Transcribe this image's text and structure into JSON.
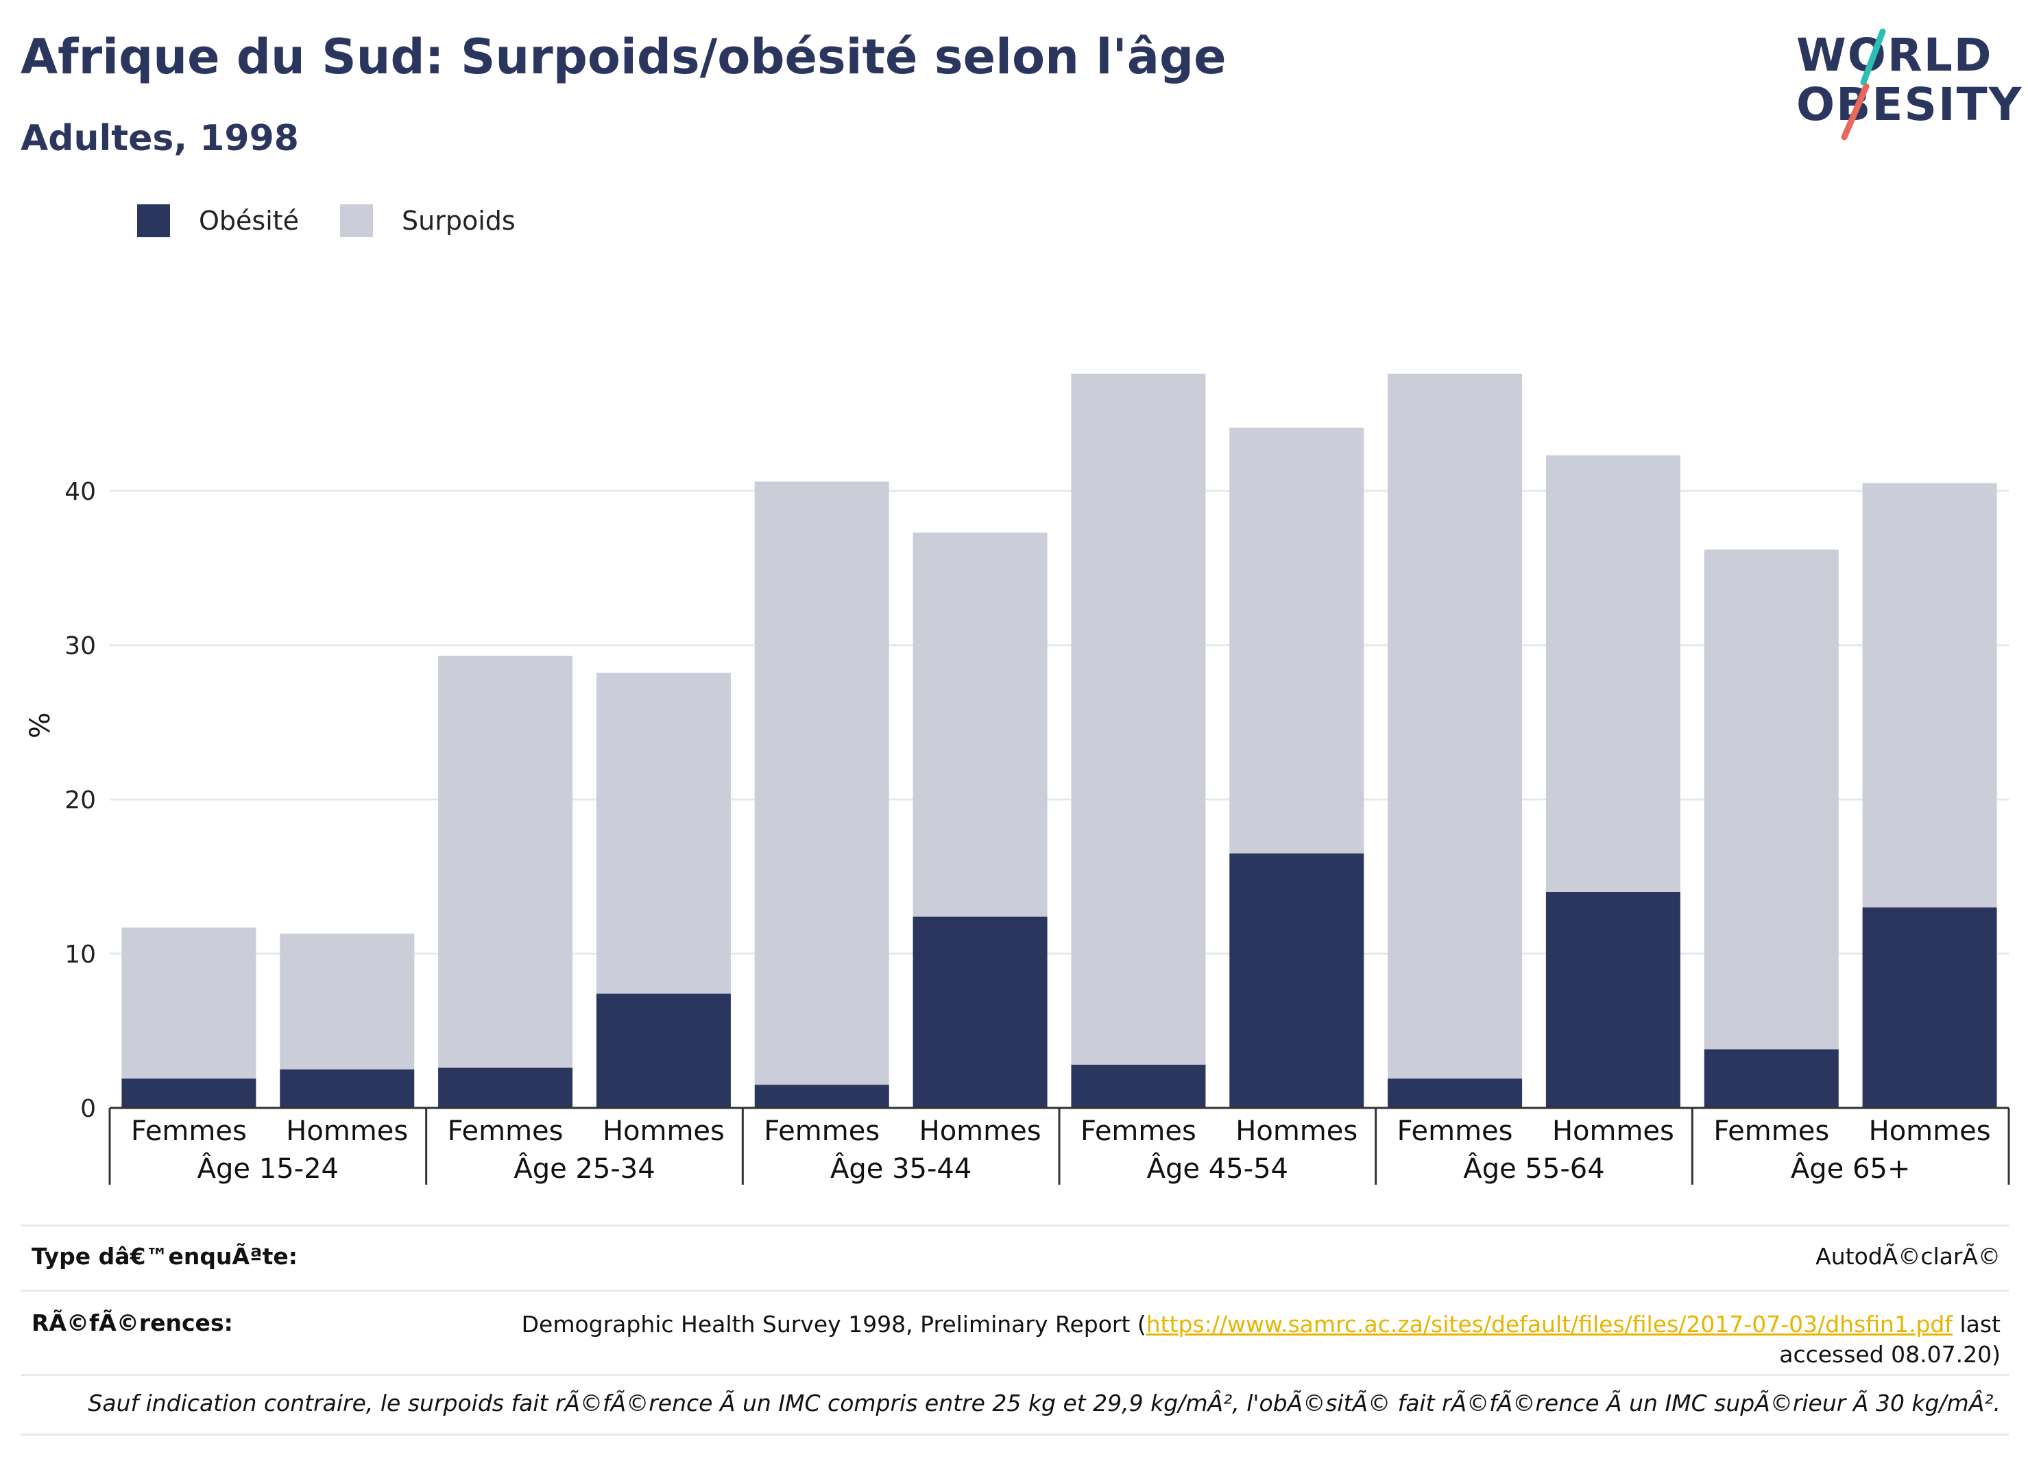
{
  "title": "Afrique du Sud: Surpoids/obésité selon l'âge",
  "subtitle": "Adultes, 1998",
  "logo": {
    "line1": "WORLD",
    "line2": "OBESITY"
  },
  "colors": {
    "obesity": "#2b365f",
    "overweight": "#cbcdd9",
    "grid": "#e6e8ee",
    "accent_teal": "#2bbfb3",
    "accent_coral": "#e8695a",
    "link": "#e8b400"
  },
  "legend": [
    {
      "label": "Obésité",
      "color": "#2b365f"
    },
    {
      "label": "Surpoids",
      "color": "#cbcdd9"
    }
  ],
  "chart_data": {
    "type": "bar",
    "stacked": true,
    "ylabel": "%",
    "ylim": [
      0,
      50
    ],
    "yticks": [
      0,
      10,
      20,
      30,
      40
    ],
    "grid": true,
    "legend_position": "top-left",
    "groups": [
      "Âge 15-24",
      "Âge 25-34",
      "Âge 35-44",
      "Âge 45-54",
      "Âge 55-64",
      "Âge 65+"
    ],
    "categories": [
      "Femmes",
      "Hommes",
      "Femmes",
      "Hommes",
      "Femmes",
      "Hommes",
      "Femmes",
      "Hommes",
      "Femmes",
      "Hommes",
      "Femmes",
      "Hommes"
    ],
    "series": [
      {
        "name": "Obésité",
        "values": [
          1.9,
          2.5,
          2.6,
          7.4,
          1.5,
          12.4,
          2.8,
          16.5,
          1.9,
          14.0,
          3.8,
          13.0
        ]
      },
      {
        "name": "Surpoids",
        "values": [
          9.8,
          8.8,
          26.7,
          20.8,
          39.1,
          24.9,
          44.8,
          27.6,
          45.7,
          28.3,
          32.4,
          27.5
        ]
      }
    ]
  },
  "table": {
    "survey_type_label": "Type dâ€™enquÃªte:",
    "survey_type_value": "AutodÃ©clarÃ©",
    "references_label": "RÃ©fÃ©rences:",
    "references_text": "Demographic Health Survey 1998, Preliminary Report (",
    "references_link": "https://www.samrc.ac.za/sites/default/files/files/2017-07-03/dhsfin1.pdf",
    "references_after_link": " last",
    "references_line2": "accessed 08.07.20)",
    "footnote": "Sauf indication contraire, le surpoids fait rÃ©fÃ©rence Ã  un IMC compris entre 25 kg et 29,9 kg/mÂ², l'obÃ©sitÃ© fait rÃ©fÃ©rence Ã  un IMC supÃ©rieur Ã  30 kg/mÂ²."
  }
}
